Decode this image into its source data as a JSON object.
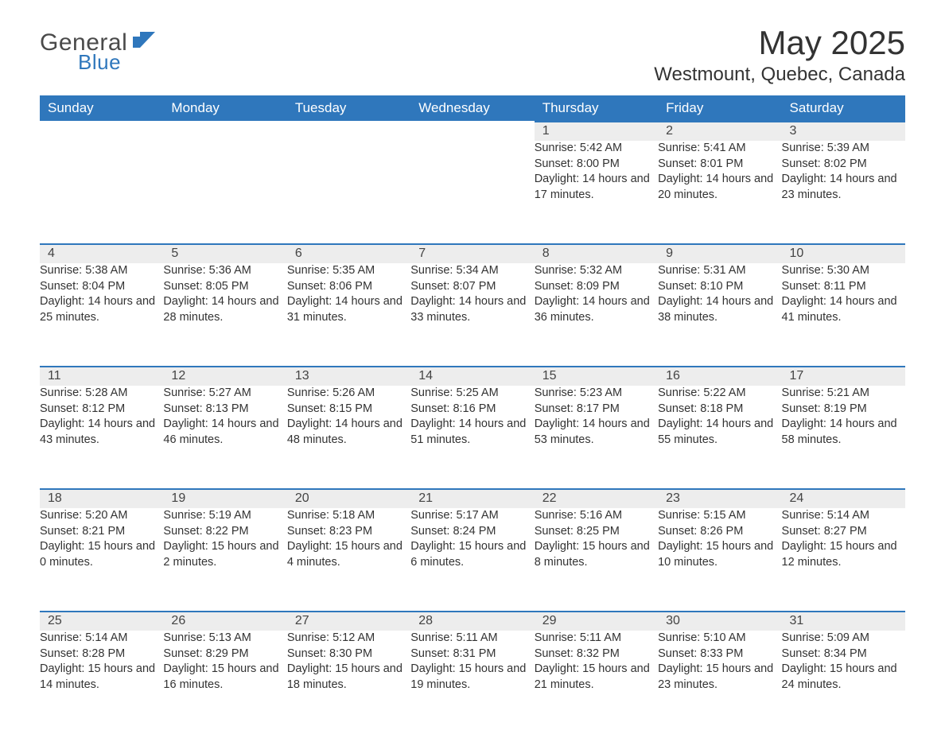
{
  "logo": {
    "word1": "General",
    "word2": "Blue"
  },
  "title": "May 2025",
  "location": "Westmount, Quebec, Canada",
  "colors": {
    "header_bg": "#2f77bc",
    "header_text": "#ffffff",
    "daynum_bg": "#ededed",
    "row_border": "#2f77bc",
    "body_text": "#333333",
    "logo_gray": "#4a4a4a",
    "logo_blue": "#2f77bc",
    "page_bg": "#ffffff"
  },
  "fonts": {
    "month_title_pt": 42,
    "location_pt": 24,
    "weekday_pt": 17,
    "daynum_pt": 16,
    "body_pt": 14.5
  },
  "weekdays": [
    "Sunday",
    "Monday",
    "Tuesday",
    "Wednesday",
    "Thursday",
    "Friday",
    "Saturday"
  ],
  "labels": {
    "sunrise": "Sunrise: ",
    "sunset": "Sunset: ",
    "daylight": "Daylight: "
  },
  "weeks": [
    [
      null,
      null,
      null,
      null,
      {
        "n": "1",
        "sr": "5:42 AM",
        "ss": "8:00 PM",
        "dl": "14 hours and 17 minutes."
      },
      {
        "n": "2",
        "sr": "5:41 AM",
        "ss": "8:01 PM",
        "dl": "14 hours and 20 minutes."
      },
      {
        "n": "3",
        "sr": "5:39 AM",
        "ss": "8:02 PM",
        "dl": "14 hours and 23 minutes."
      }
    ],
    [
      {
        "n": "4",
        "sr": "5:38 AM",
        "ss": "8:04 PM",
        "dl": "14 hours and 25 minutes."
      },
      {
        "n": "5",
        "sr": "5:36 AM",
        "ss": "8:05 PM",
        "dl": "14 hours and 28 minutes."
      },
      {
        "n": "6",
        "sr": "5:35 AM",
        "ss": "8:06 PM",
        "dl": "14 hours and 31 minutes."
      },
      {
        "n": "7",
        "sr": "5:34 AM",
        "ss": "8:07 PM",
        "dl": "14 hours and 33 minutes."
      },
      {
        "n": "8",
        "sr": "5:32 AM",
        "ss": "8:09 PM",
        "dl": "14 hours and 36 minutes."
      },
      {
        "n": "9",
        "sr": "5:31 AM",
        "ss": "8:10 PM",
        "dl": "14 hours and 38 minutes."
      },
      {
        "n": "10",
        "sr": "5:30 AM",
        "ss": "8:11 PM",
        "dl": "14 hours and 41 minutes."
      }
    ],
    [
      {
        "n": "11",
        "sr": "5:28 AM",
        "ss": "8:12 PM",
        "dl": "14 hours and 43 minutes."
      },
      {
        "n": "12",
        "sr": "5:27 AM",
        "ss": "8:13 PM",
        "dl": "14 hours and 46 minutes."
      },
      {
        "n": "13",
        "sr": "5:26 AM",
        "ss": "8:15 PM",
        "dl": "14 hours and 48 minutes."
      },
      {
        "n": "14",
        "sr": "5:25 AM",
        "ss": "8:16 PM",
        "dl": "14 hours and 51 minutes."
      },
      {
        "n": "15",
        "sr": "5:23 AM",
        "ss": "8:17 PM",
        "dl": "14 hours and 53 minutes."
      },
      {
        "n": "16",
        "sr": "5:22 AM",
        "ss": "8:18 PM",
        "dl": "14 hours and 55 minutes."
      },
      {
        "n": "17",
        "sr": "5:21 AM",
        "ss": "8:19 PM",
        "dl": "14 hours and 58 minutes."
      }
    ],
    [
      {
        "n": "18",
        "sr": "5:20 AM",
        "ss": "8:21 PM",
        "dl": "15 hours and 0 minutes."
      },
      {
        "n": "19",
        "sr": "5:19 AM",
        "ss": "8:22 PM",
        "dl": "15 hours and 2 minutes."
      },
      {
        "n": "20",
        "sr": "5:18 AM",
        "ss": "8:23 PM",
        "dl": "15 hours and 4 minutes."
      },
      {
        "n": "21",
        "sr": "5:17 AM",
        "ss": "8:24 PM",
        "dl": "15 hours and 6 minutes."
      },
      {
        "n": "22",
        "sr": "5:16 AM",
        "ss": "8:25 PM",
        "dl": "15 hours and 8 minutes."
      },
      {
        "n": "23",
        "sr": "5:15 AM",
        "ss": "8:26 PM",
        "dl": "15 hours and 10 minutes."
      },
      {
        "n": "24",
        "sr": "5:14 AM",
        "ss": "8:27 PM",
        "dl": "15 hours and 12 minutes."
      }
    ],
    [
      {
        "n": "25",
        "sr": "5:14 AM",
        "ss": "8:28 PM",
        "dl": "15 hours and 14 minutes."
      },
      {
        "n": "26",
        "sr": "5:13 AM",
        "ss": "8:29 PM",
        "dl": "15 hours and 16 minutes."
      },
      {
        "n": "27",
        "sr": "5:12 AM",
        "ss": "8:30 PM",
        "dl": "15 hours and 18 minutes."
      },
      {
        "n": "28",
        "sr": "5:11 AM",
        "ss": "8:31 PM",
        "dl": "15 hours and 19 minutes."
      },
      {
        "n": "29",
        "sr": "5:11 AM",
        "ss": "8:32 PM",
        "dl": "15 hours and 21 minutes."
      },
      {
        "n": "30",
        "sr": "5:10 AM",
        "ss": "8:33 PM",
        "dl": "15 hours and 23 minutes."
      },
      {
        "n": "31",
        "sr": "5:09 AM",
        "ss": "8:34 PM",
        "dl": "15 hours and 24 minutes."
      }
    ]
  ]
}
